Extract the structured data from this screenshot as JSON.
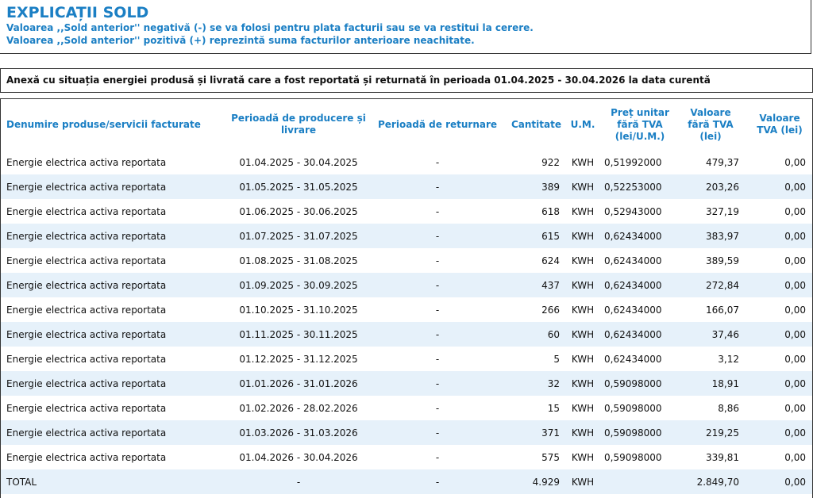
{
  "explicatii": {
    "title": "EXPLICAȚII SOLD",
    "line1": "Valoarea ,,Sold anterior'' negativă (-) se va folosi pentru plata facturii sau se va restitui la cerere.",
    "line2": "Valoarea ,,Sold anterior'' pozitivă (+) reprezintă suma facturilor anterioare neachitate."
  },
  "anexa": {
    "text": "Anexă cu situația energiei produsă și livrată care a fost reportată și returnată în perioada 01.04.2025 - 30.04.2026 la data curentă"
  },
  "table": {
    "headers": {
      "denumire": "Denumire produse/servicii facturate",
      "perioada_productie": "Perioadă de producere și livrare",
      "perioada_returnare": "Perioadă de returnare",
      "cantitate": "Cantitate",
      "um": "U.M.",
      "pret": "Preț unitar fără TVA (lei/U.M.)",
      "valoare": "Valoare fără TVA (lei)",
      "tva": "Valoare TVA (lei)"
    },
    "rows": [
      {
        "denumire": "Energie electrica activa reportata",
        "perioada": "01.04.2025 - 30.04.2025",
        "returnare": "-",
        "cantitate": "922",
        "um": "KWH",
        "pret": "0,51992000",
        "valoare": "479,37",
        "tva": "0,00"
      },
      {
        "denumire": "Energie electrica activa reportata",
        "perioada": "01.05.2025 - 31.05.2025",
        "returnare": "-",
        "cantitate": "389",
        "um": "KWH",
        "pret": "0,52253000",
        "valoare": "203,26",
        "tva": "0,00"
      },
      {
        "denumire": "Energie electrica activa reportata",
        "perioada": "01.06.2025 - 30.06.2025",
        "returnare": "-",
        "cantitate": "618",
        "um": "KWH",
        "pret": "0,52943000",
        "valoare": "327,19",
        "tva": "0,00"
      },
      {
        "denumire": "Energie electrica activa reportata",
        "perioada": "01.07.2025 - 31.07.2025",
        "returnare": "-",
        "cantitate": "615",
        "um": "KWH",
        "pret": "0,62434000",
        "valoare": "383,97",
        "tva": "0,00"
      },
      {
        "denumire": "Energie electrica activa reportata",
        "perioada": "01.08.2025 - 31.08.2025",
        "returnare": "-",
        "cantitate": "624",
        "um": "KWH",
        "pret": "0,62434000",
        "valoare": "389,59",
        "tva": "0,00"
      },
      {
        "denumire": "Energie electrica activa reportata",
        "perioada": "01.09.2025 - 30.09.2025",
        "returnare": "-",
        "cantitate": "437",
        "um": "KWH",
        "pret": "0,62434000",
        "valoare": "272,84",
        "tva": "0,00"
      },
      {
        "denumire": "Energie electrica activa reportata",
        "perioada": "01.10.2025 - 31.10.2025",
        "returnare": "-",
        "cantitate": "266",
        "um": "KWH",
        "pret": "0,62434000",
        "valoare": "166,07",
        "tva": "0,00"
      },
      {
        "denumire": "Energie electrica activa reportata",
        "perioada": "01.11.2025 - 30.11.2025",
        "returnare": "-",
        "cantitate": "60",
        "um": "KWH",
        "pret": "0,62434000",
        "valoare": "37,46",
        "tva": "0,00"
      },
      {
        "denumire": "Energie electrica activa reportata",
        "perioada": "01.12.2025 - 31.12.2025",
        "returnare": "-",
        "cantitate": "5",
        "um": "KWH",
        "pret": "0,62434000",
        "valoare": "3,12",
        "tva": "0,00"
      },
      {
        "denumire": "Energie electrica activa reportata",
        "perioada": "01.01.2026 - 31.01.2026",
        "returnare": "-",
        "cantitate": "32",
        "um": "KWH",
        "pret": "0,59098000",
        "valoare": "18,91",
        "tva": "0,00"
      },
      {
        "denumire": "Energie electrica activa reportata",
        "perioada": "01.02.2026 - 28.02.2026",
        "returnare": "-",
        "cantitate": "15",
        "um": "KWH",
        "pret": "0,59098000",
        "valoare": "8,86",
        "tva": "0,00"
      },
      {
        "denumire": "Energie electrica activa reportata",
        "perioada": "01.03.2026 - 31.03.2026",
        "returnare": "-",
        "cantitate": "371",
        "um": "KWH",
        "pret": "0,59098000",
        "valoare": "219,25",
        "tva": "0,00"
      },
      {
        "denumire": "Energie electrica activa reportata",
        "perioada": "01.04.2026 - 30.04.2026",
        "returnare": "-",
        "cantitate": "575",
        "um": "KWH",
        "pret": "0,59098000",
        "valoare": "339,81",
        "tva": "0,00"
      }
    ],
    "total": {
      "denumire": "TOTAL",
      "perioada": "-",
      "returnare": "-",
      "cantitate": "4.929",
      "um": "KWH",
      "pret": "",
      "valoare": "2.849,70",
      "tva": "0,00"
    }
  }
}
